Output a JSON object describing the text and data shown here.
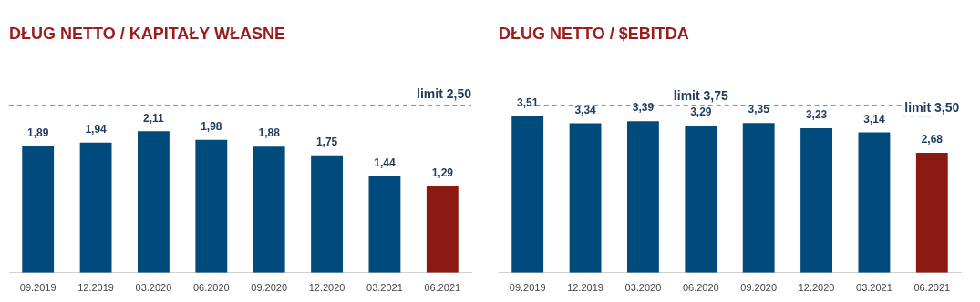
{
  "chart_data": [
    {
      "type": "bar",
      "title": "DŁUG NETTO / KAPITAŁY WŁASNE",
      "categories": [
        "09.2019",
        "12.2019",
        "03.2020",
        "06.2020",
        "09.2020",
        "12.2020",
        "03.2021",
        "06.2021"
      ],
      "series": [
        {
          "colors": [
            "#004a7c",
            "#004a7c",
            "#004a7c",
            "#004a7c",
            "#004a7c",
            "#004a7c",
            "#004a7c",
            "#8b1a12"
          ],
          "values": [
            1.89,
            1.94,
            2.11,
            1.98,
            1.88,
            1.75,
            1.44,
            1.29
          ],
          "value_labels": [
            "1,89",
            "1,94",
            "2,11",
            "1,98",
            "1,88",
            "1,75",
            "1,44",
            "1,29"
          ]
        }
      ],
      "data_labels": true,
      "tick_labels": "x",
      "legend": false,
      "grid": false,
      "ref_lines": [
        {
          "axis": "y",
          "value": 2.5,
          "label": "limit 2,50",
          "color": "#5b9bd5",
          "line_style": "dashed"
        }
      ]
    },
    {
      "type": "bar",
      "title": "DŁUG NETTO / $EBITDA",
      "categories": [
        "09.2019",
        "12.2019",
        "03.2020",
        "06.2020",
        "09.2020",
        "12.2020",
        "03.2021",
        "06.2021"
      ],
      "series": [
        {
          "colors": [
            "#004a7c",
            "#004a7c",
            "#004a7c",
            "#004a7c",
            "#004a7c",
            "#004a7c",
            "#004a7c",
            "#8b1a12"
          ],
          "values": [
            3.51,
            3.34,
            3.39,
            3.29,
            3.35,
            3.23,
            3.14,
            2.68
          ],
          "value_labels": [
            "3,51",
            "3,34",
            "3,39",
            "3,29",
            "3,35",
            "3,23",
            "3,14",
            "2,68"
          ]
        },
        {
          "type": "step",
          "color": "#5b9bd5",
          "line_style": "dashed",
          "marker": "none",
          "values": [
            3.75,
            3.75,
            3.75,
            3.75,
            3.75,
            3.75,
            3.75,
            3.5
          ],
          "value_labels": [
            null,
            null,
            null,
            null,
            null,
            null,
            null,
            null
          ]
        }
      ],
      "data_labels": true,
      "tick_labels": "x",
      "legend": false,
      "grid": false,
      "annotations": [
        {
          "text": "limit 3,75",
          "x": "06.2020",
          "y": 3.75
        },
        {
          "text": "limit 3,50",
          "x": "06.2021",
          "y": 3.5
        }
      ]
    }
  ]
}
